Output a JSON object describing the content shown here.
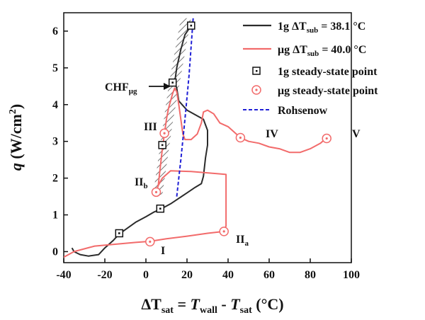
{
  "chart_data": {
    "type": "line",
    "xlim": [
      -40,
      100
    ],
    "ylim": [
      -0.3,
      6.5
    ],
    "x_ticks": [
      -40,
      -20,
      0,
      20,
      40,
      60,
      80,
      100
    ],
    "y_ticks": [
      0,
      1,
      2,
      3,
      4,
      5,
      6
    ],
    "colors": {
      "one_g": "#2b2b2b",
      "micro_g": "#f26b6b",
      "rohsenow": "#1f1fd6",
      "hatch": "#555555"
    },
    "legend": {
      "position": "top-right",
      "line1": {
        "prefix": "1g ",
        "delta": "ΔT",
        "sub": "sub",
        "suffix": " = 38.1 °C"
      },
      "line2": {
        "prefix": "μg ",
        "delta": "ΔT",
        "sub": "sub",
        "suffix": " = 40.0 °C"
      },
      "point1": "1g steady-state point",
      "point2": "μg steady-state point",
      "rohsenow": "Rohsenow"
    },
    "annotations": {
      "chf_main": "CHF",
      "chf_sub": "μg",
      "I": "I",
      "IIa_main": "II",
      "IIa_sub": "a",
      "IIb_main": "II",
      "IIb_sub": "b",
      "III": "III",
      "IV": "IV",
      "V": "V"
    },
    "x_title": {
      "a": "ΔT",
      "a_sub": "sat",
      "b": " = ",
      "c": "T",
      "c_sub": "wall",
      "d": " - ",
      "e": "T",
      "e_sub": "sat",
      "f": " (°C)"
    },
    "y_title": {
      "a": "q",
      "b": " (W/cm",
      "sup": "2",
      "c": ")"
    },
    "series": [
      {
        "name": "1g ΔTsub = 38.1 °C",
        "points": [
          [
            -36,
            0.1
          ],
          [
            -35,
            0.0
          ],
          [
            -32,
            -0.08
          ],
          [
            -28,
            -0.12
          ],
          [
            -23,
            -0.08
          ],
          [
            -20,
            0.1
          ],
          [
            -16,
            0.3
          ],
          [
            -13,
            0.48
          ],
          [
            -10,
            0.6
          ],
          [
            -5,
            0.8
          ],
          [
            0,
            0.95
          ],
          [
            4,
            1.08
          ],
          [
            7,
            1.15
          ],
          [
            12,
            1.3
          ],
          [
            16,
            1.45
          ],
          [
            20,
            1.6
          ],
          [
            24,
            1.75
          ],
          [
            27,
            1.85
          ],
          [
            28,
            2.05
          ],
          [
            29,
            2.55
          ],
          [
            30,
            2.9
          ],
          [
            30,
            3.3
          ],
          [
            28,
            3.6
          ],
          [
            20,
            3.85
          ],
          [
            16,
            4.1
          ],
          [
            15,
            4.45
          ],
          [
            14,
            4.6
          ],
          [
            15,
            5.0
          ],
          [
            17,
            5.5
          ],
          [
            19,
            5.9
          ],
          [
            22,
            6.15
          ]
        ]
      },
      {
        "name": "μg ΔTsub = 40.0 °C",
        "points": [
          [
            -40,
            -0.15
          ],
          [
            -35,
            0.0
          ],
          [
            -25,
            0.15
          ],
          [
            -15,
            0.2
          ],
          [
            -5,
            0.25
          ],
          [
            2,
            0.28
          ],
          [
            10,
            0.35
          ],
          [
            20,
            0.42
          ],
          [
            30,
            0.5
          ],
          [
            38,
            0.55
          ],
          [
            39,
            0.7
          ],
          [
            39,
            1.5
          ],
          [
            39,
            2.1
          ],
          [
            35,
            2.12
          ],
          [
            22,
            2.18
          ],
          [
            12,
            2.2
          ],
          [
            8,
            2.0
          ],
          [
            6,
            1.8
          ],
          [
            5,
            1.62
          ],
          [
            6,
            1.8
          ],
          [
            7,
            2.3
          ],
          [
            8,
            2.8
          ],
          [
            9,
            3.2
          ],
          [
            10,
            3.6
          ],
          [
            11,
            3.9
          ],
          [
            12,
            4.1
          ],
          [
            13,
            4.3
          ],
          [
            14,
            4.45
          ],
          [
            15,
            4.35
          ],
          [
            16,
            4.0
          ],
          [
            17,
            3.6
          ],
          [
            18,
            3.2
          ],
          [
            19,
            3.05
          ],
          [
            22,
            3.05
          ],
          [
            25,
            3.2
          ],
          [
            27,
            3.5
          ],
          [
            28,
            3.8
          ],
          [
            30,
            3.85
          ],
          [
            33,
            3.75
          ],
          [
            36,
            3.5
          ],
          [
            40,
            3.4
          ],
          [
            44,
            3.2
          ],
          [
            46,
            3.1
          ],
          [
            50,
            3.0
          ],
          [
            55,
            2.95
          ],
          [
            60,
            2.85
          ],
          [
            65,
            2.8
          ],
          [
            70,
            2.7
          ],
          [
            75,
            2.7
          ],
          [
            80,
            2.8
          ],
          [
            85,
            2.95
          ],
          [
            88,
            3.1
          ]
        ]
      },
      {
        "name": "Rohsenow",
        "points": [
          [
            15,
            1.5
          ],
          [
            17,
            2.5
          ],
          [
            19,
            3.6
          ],
          [
            21,
            4.8
          ],
          [
            23,
            6.35
          ]
        ]
      }
    ],
    "steady_1g": [
      [
        -13,
        0.5
      ],
      [
        7,
        1.17
      ],
      [
        8,
        2.9
      ],
      [
        13,
        4.6
      ],
      [
        22,
        6.15
      ]
    ],
    "steady_ug": [
      [
        2,
        0.27
      ],
      [
        38,
        0.55
      ],
      [
        5,
        1.62
      ],
      [
        9,
        3.22
      ],
      [
        46,
        3.1
      ],
      [
        88,
        3.08
      ]
    ]
  }
}
